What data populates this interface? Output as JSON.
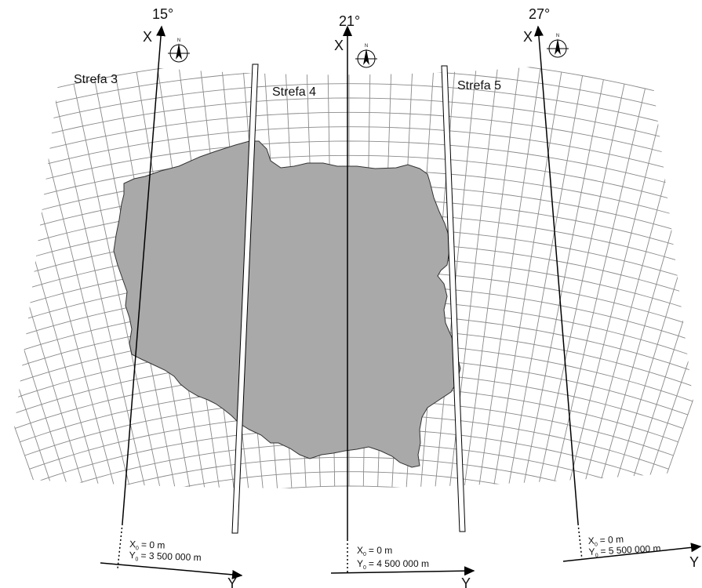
{
  "zones": [
    {
      "name": "Strefa 3",
      "meridian": "15°",
      "x_axis": "X",
      "y_axis": "Y",
      "x0": "X",
      "x0_sub": "0",
      "x0_val": "= 0 m",
      "y0": "Y",
      "y0_sub": "0",
      "y0_val": "= 3 500 000 m"
    },
    {
      "name": "Strefa 4",
      "meridian": "21°",
      "x_axis": "X",
      "y_axis": "Y",
      "x0": "X",
      "x0_sub": "0",
      "x0_val": "= 0 m",
      "y0": "Y",
      "y0_sub": "0",
      "y0_val": "= 4 500 000 m"
    },
    {
      "name": "Strefa 5",
      "meridian": "27°",
      "x_axis": "X",
      "y_axis": "Y",
      "x0": "X",
      "x0_sub": "0",
      "x0_val": "= 0 m",
      "y0": "Y",
      "y0_sub": "0",
      "y0_val": "= 5 500 000 m"
    }
  ],
  "compass_label": "N",
  "colors": {
    "country_fill": "#a9a9a9",
    "grid": "#8a8a8a",
    "axis": "#000000",
    "background": "#ffffff"
  },
  "icons": [
    "compass-rose-icon"
  ]
}
